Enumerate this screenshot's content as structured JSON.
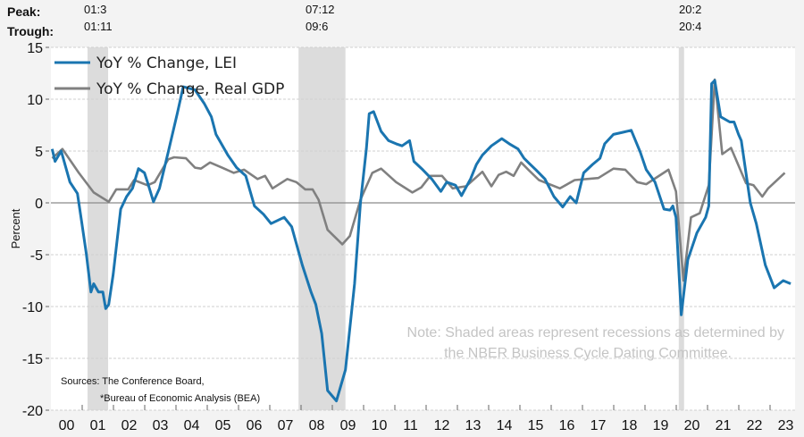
{
  "header": {
    "peak_label": "Peak:",
    "trough_label": "Trough:",
    "recessions": [
      {
        "peak": "01:3",
        "trough": "01:11",
        "start": 2001.17,
        "end": 2001.83
      },
      {
        "peak": "07:12",
        "trough": "09:6",
        "start": 2007.92,
        "end": 2009.42
      },
      {
        "peak": "20:2",
        "trough": "20:4",
        "start": 2020.08,
        "end": 2020.25
      }
    ]
  },
  "note": [
    "Note: Shaded areas represent recessions as determined by",
    "the NBER Business Cycle Dating Committee."
  ],
  "sources": [
    "Sources: The Conference Board,",
    "*Bureau of Economic Analysis (BEA)"
  ],
  "colors": {
    "lei": "#1a75b0",
    "gdp": "#808080",
    "recession": "#dcdcdc",
    "note": "#c4c4c4"
  },
  "chart_data": {
    "type": "line",
    "title": "",
    "xlabel": "",
    "ylabel": "Percent",
    "ylim": [
      -20,
      15
    ],
    "yticks": [
      15,
      10,
      5,
      0,
      -5,
      -10,
      -15,
      -20
    ],
    "xlim": [
      2000,
      2024
    ],
    "xtick_labels": [
      "00",
      "01",
      "02",
      "03",
      "04",
      "05",
      "06",
      "07",
      "08",
      "09",
      "10",
      "11",
      "12",
      "13",
      "14",
      "15",
      "16",
      "17",
      "18",
      "19",
      "20",
      "21",
      "22",
      "23"
    ],
    "grid": true,
    "legend_position": "top-left",
    "series": [
      {
        "name": "YoY % Change, LEI",
        "points": [
          [
            2000.04,
            5.2
          ],
          [
            2000.13,
            4.0
          ],
          [
            2000.33,
            5.0
          ],
          [
            2000.61,
            2.0
          ],
          [
            2000.85,
            0.9
          ],
          [
            2000.99,
            -2.0
          ],
          [
            2001.13,
            -4.9
          ],
          [
            2001.28,
            -8.6
          ],
          [
            2001.37,
            -7.8
          ],
          [
            2001.52,
            -8.6
          ],
          [
            2001.66,
            -8.6
          ],
          [
            2001.75,
            -10.2
          ],
          [
            2001.85,
            -9.8
          ],
          [
            2001.99,
            -6.9
          ],
          [
            2002.23,
            -0.6
          ],
          [
            2002.42,
            0.6
          ],
          [
            2002.61,
            1.4
          ],
          [
            2002.8,
            3.3
          ],
          [
            2002.99,
            2.9
          ],
          [
            2003.09,
            2.0
          ],
          [
            2003.28,
            0.1
          ],
          [
            2003.47,
            1.4
          ],
          [
            2003.75,
            4.9
          ],
          [
            2004.04,
            8.6
          ],
          [
            2004.23,
            11.2
          ],
          [
            2004.61,
            10.9
          ],
          [
            2004.9,
            9.6
          ],
          [
            2005.13,
            8.3
          ],
          [
            2005.28,
            6.6
          ],
          [
            2005.66,
            4.6
          ],
          [
            2005.94,
            3.4
          ],
          [
            2006.23,
            2.6
          ],
          [
            2006.51,
            -0.3
          ],
          [
            2006.8,
            -1.1
          ],
          [
            2007.04,
            -2.0
          ],
          [
            2007.46,
            -1.4
          ],
          [
            2007.7,
            -2.3
          ],
          [
            2008.04,
            -6.0
          ],
          [
            2008.32,
            -8.6
          ],
          [
            2008.47,
            -9.8
          ],
          [
            2008.66,
            -12.6
          ],
          [
            2008.85,
            -18.1
          ],
          [
            2009.13,
            -19.1
          ],
          [
            2009.42,
            -16.1
          ],
          [
            2009.71,
            -7.8
          ],
          [
            2009.9,
            0
          ],
          [
            2010.09,
            5.2
          ],
          [
            2010.18,
            8.6
          ],
          [
            2010.32,
            8.8
          ],
          [
            2010.56,
            6.9
          ],
          [
            2010.8,
            6.0
          ],
          [
            2011.04,
            5.7
          ],
          [
            2011.23,
            5.5
          ],
          [
            2011.47,
            6.0
          ],
          [
            2011.61,
            4.0
          ],
          [
            2011.89,
            3.2
          ],
          [
            2012.18,
            2.3
          ],
          [
            2012.47,
            1.1
          ],
          [
            2012.66,
            2.0
          ],
          [
            2012.94,
            1.7
          ],
          [
            2013.13,
            0.7
          ],
          [
            2013.42,
            2.3
          ],
          [
            2013.61,
            3.7
          ],
          [
            2013.8,
            4.6
          ],
          [
            2014.09,
            5.5
          ],
          [
            2014.42,
            6.2
          ],
          [
            2014.66,
            5.7
          ],
          [
            2014.94,
            5.2
          ],
          [
            2015.13,
            4.3
          ],
          [
            2015.3,
            3.8
          ],
          [
            2015.51,
            3.2
          ],
          [
            2015.8,
            2.3
          ],
          [
            2016.09,
            0.6
          ],
          [
            2016.37,
            -0.4
          ],
          [
            2016.61,
            0.6
          ],
          [
            2016.8,
            0
          ],
          [
            2017.04,
            2.9
          ],
          [
            2017.32,
            3.7
          ],
          [
            2017.56,
            4.3
          ],
          [
            2017.71,
            5.7
          ],
          [
            2017.99,
            6.6
          ],
          [
            2018.28,
            6.8
          ],
          [
            2018.56,
            7.0
          ],
          [
            2018.85,
            4.9
          ],
          [
            2019.04,
            3.2
          ],
          [
            2019.32,
            2.0
          ],
          [
            2019.61,
            -0.6
          ],
          [
            2019.8,
            -0.7
          ],
          [
            2019.89,
            -0.3
          ],
          [
            2019.99,
            -1.4
          ],
          [
            2020.16,
            -10.8
          ],
          [
            2020.37,
            -5.5
          ],
          [
            2020.66,
            -2.9
          ],
          [
            2020.94,
            -1.4
          ],
          [
            2021.04,
            -0.3
          ],
          [
            2021.13,
            11.5
          ],
          [
            2021.23,
            11.8
          ],
          [
            2021.42,
            8.3
          ],
          [
            2021.71,
            7.8
          ],
          [
            2021.85,
            7.8
          ],
          [
            2021.99,
            6.6
          ],
          [
            2022.08,
            6.0
          ],
          [
            2022.37,
            0
          ],
          [
            2022.56,
            -2.0
          ],
          [
            2022.85,
            -6.0
          ],
          [
            2023.13,
            -8.2
          ],
          [
            2023.42,
            -7.5
          ],
          [
            2023.66,
            -7.8
          ]
        ]
      },
      {
        "name": "YoY % Change, Real GDP",
        "points": [
          [
            2000.04,
            4.3
          ],
          [
            2000.37,
            5.2
          ],
          [
            2000.89,
            2.9
          ],
          [
            2001.37,
            1.0
          ],
          [
            2001.85,
            0.1
          ],
          [
            2002.09,
            1.3
          ],
          [
            2002.47,
            1.3
          ],
          [
            2002.66,
            2.2
          ],
          [
            2003.09,
            1.7
          ],
          [
            2003.32,
            2.0
          ],
          [
            2003.75,
            4.2
          ],
          [
            2003.94,
            4.4
          ],
          [
            2004.32,
            4.3
          ],
          [
            2004.61,
            3.4
          ],
          [
            2004.8,
            3.3
          ],
          [
            2005.09,
            3.9
          ],
          [
            2005.47,
            3.4
          ],
          [
            2005.85,
            2.9
          ],
          [
            2006.18,
            3.2
          ],
          [
            2006.61,
            2.3
          ],
          [
            2006.85,
            2.6
          ],
          [
            2007.09,
            1.4
          ],
          [
            2007.56,
            2.3
          ],
          [
            2007.85,
            2.0
          ],
          [
            2008.13,
            1.3
          ],
          [
            2008.37,
            1.3
          ],
          [
            2008.56,
            0.3
          ],
          [
            2008.85,
            -2.6
          ],
          [
            2009.32,
            -4.0
          ],
          [
            2009.56,
            -3.2
          ],
          [
            2009.9,
            0.3
          ],
          [
            2010.28,
            2.9
          ],
          [
            2010.56,
            3.3
          ],
          [
            2011.04,
            2.0
          ],
          [
            2011.56,
            1.0
          ],
          [
            2011.85,
            1.5
          ],
          [
            2012.13,
            2.6
          ],
          [
            2012.51,
            2.6
          ],
          [
            2012.85,
            1.4
          ],
          [
            2013.28,
            1.6
          ],
          [
            2013.8,
            3.0
          ],
          [
            2014.09,
            1.6
          ],
          [
            2014.32,
            2.7
          ],
          [
            2014.56,
            3.0
          ],
          [
            2014.8,
            2.6
          ],
          [
            2015.04,
            3.9
          ],
          [
            2015.3,
            3.1
          ],
          [
            2015.61,
            2.2
          ],
          [
            2016.28,
            1.4
          ],
          [
            2016.75,
            2.2
          ],
          [
            2017.51,
            2.4
          ],
          [
            2017.99,
            3.3
          ],
          [
            2018.37,
            3.2
          ],
          [
            2018.75,
            2.0
          ],
          [
            2019.04,
            1.8
          ],
          [
            2019.75,
            3.2
          ],
          [
            2019.99,
            1.1
          ],
          [
            2020.23,
            -7.5
          ],
          [
            2020.47,
            -1.4
          ],
          [
            2020.75,
            -1.0
          ],
          [
            2021.04,
            1.7
          ],
          [
            2021.23,
            11.9
          ],
          [
            2021.47,
            4.7
          ],
          [
            2021.75,
            5.3
          ],
          [
            2022.23,
            1.9
          ],
          [
            2022.47,
            1.7
          ],
          [
            2022.75,
            0.6
          ],
          [
            2022.94,
            1.4
          ],
          [
            2023.47,
            2.9
          ]
        ]
      }
    ]
  }
}
